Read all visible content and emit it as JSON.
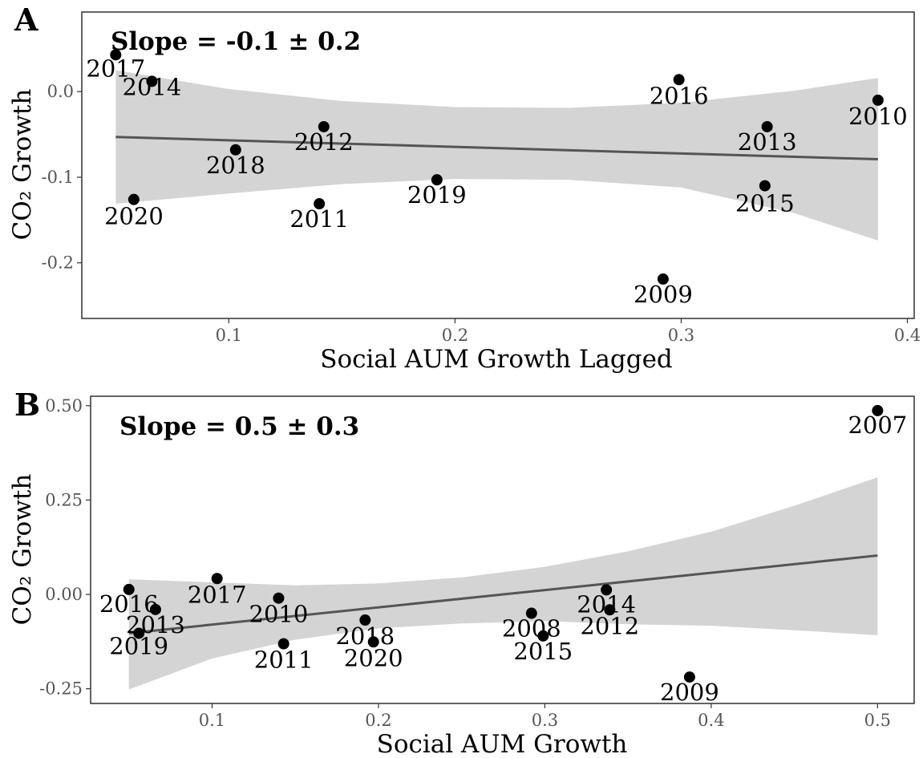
{
  "chart_data": [
    {
      "type": "scatter",
      "panel_label": "A",
      "annotation": "Slope = -0.1 ± 0.2",
      "xlabel": "Social AUM Growth Lagged",
      "ylabel": "CO₂ Growth",
      "xlim": [
        0.035,
        0.403
      ],
      "ylim": [
        -0.265,
        0.093
      ],
      "xticks": [
        0.1,
        0.2,
        0.3,
        0.4
      ],
      "xtick_labels": [
        "0.1",
        "0.2",
        "0.3",
        "0.4"
      ],
      "yticks": [
        -0.2,
        -0.1,
        0.0
      ],
      "ytick_labels": [
        "-0.2",
        "-0.1",
        "0.0"
      ],
      "points": [
        {
          "label": "2017",
          "x": 0.05,
          "y": 0.043
        },
        {
          "label": "2014",
          "x": 0.066,
          "y": 0.012
        },
        {
          "label": "2020",
          "x": 0.058,
          "y": -0.126
        },
        {
          "label": "2018",
          "x": 0.103,
          "y": -0.068
        },
        {
          "label": "2012",
          "x": 0.142,
          "y": -0.041
        },
        {
          "label": "2011",
          "x": 0.14,
          "y": -0.131
        },
        {
          "label": "2019",
          "x": 0.192,
          "y": -0.103
        },
        {
          "label": "2009",
          "x": 0.292,
          "y": -0.219
        },
        {
          "label": "2016",
          "x": 0.299,
          "y": 0.014
        },
        {
          "label": "2013",
          "x": 0.338,
          "y": -0.041
        },
        {
          "label": "2015",
          "x": 0.337,
          "y": -0.11
        },
        {
          "label": "2010",
          "x": 0.387,
          "y": -0.01
        }
      ],
      "fit": {
        "x": [
          0.05,
          0.387
        ],
        "y": [
          -0.053,
          -0.079
        ]
      },
      "band": {
        "x": [
          0.05,
          0.1,
          0.15,
          0.2,
          0.25,
          0.3,
          0.35,
          0.387
        ],
        "upper": [
          0.025,
          0.003,
          -0.011,
          -0.018,
          -0.019,
          -0.013,
          0.001,
          0.016
        ],
        "lower": [
          -0.131,
          -0.119,
          -0.108,
          -0.102,
          -0.103,
          -0.112,
          -0.142,
          -0.174
        ]
      },
      "grid": false
    },
    {
      "type": "scatter",
      "panel_label": "B",
      "annotation": "Slope = 0.5 ± 0.3",
      "xlabel": "Social AUM Growth",
      "ylabel": "CO₂ Growth",
      "xlim": [
        0.027,
        0.522
      ],
      "ylim": [
        -0.289,
        0.525
      ],
      "xticks": [
        0.1,
        0.2,
        0.3,
        0.4,
        0.5
      ],
      "xtick_labels": [
        "0.1",
        "0.2",
        "0.3",
        "0.4",
        "0.5"
      ],
      "yticks": [
        -0.25,
        0.0,
        0.25,
        0.5
      ],
      "ytick_labels": [
        "-0.25",
        "0.00",
        "0.25",
        "0.50"
      ],
      "points": [
        {
          "label": "2007",
          "x": 0.5,
          "y": 0.487
        },
        {
          "label": "2016",
          "x": 0.05,
          "y": 0.013
        },
        {
          "label": "2013",
          "x": 0.066,
          "y": -0.04
        },
        {
          "label": "2019",
          "x": 0.056,
          "y": -0.103
        },
        {
          "label": "2017",
          "x": 0.103,
          "y": 0.042
        },
        {
          "label": "2010",
          "x": 0.14,
          "y": -0.01
        },
        {
          "label": "2011",
          "x": 0.143,
          "y": -0.131
        },
        {
          "label": "2018",
          "x": 0.192,
          "y": -0.068
        },
        {
          "label": "2020",
          "x": 0.197,
          "y": -0.126
        },
        {
          "label": "2008",
          "x": 0.292,
          "y": -0.05
        },
        {
          "label": "2015",
          "x": 0.299,
          "y": -0.11
        },
        {
          "label": "2014",
          "x": 0.337,
          "y": 0.012
        },
        {
          "label": "2012",
          "x": 0.339,
          "y": -0.041
        },
        {
          "label": "2009",
          "x": 0.387,
          "y": -0.219
        }
      ],
      "fit": {
        "x": [
          0.05,
          0.5
        ],
        "y": [
          -0.103,
          0.103
        ]
      },
      "band": {
        "x": [
          0.05,
          0.1,
          0.15,
          0.2,
          0.25,
          0.3,
          0.35,
          0.4,
          0.45,
          0.5
        ],
        "upper": [
          0.04,
          0.032,
          0.024,
          0.029,
          0.045,
          0.073,
          0.114,
          0.166,
          0.235,
          0.31
        ],
        "lower": [
          -0.252,
          -0.17,
          -0.12,
          -0.09,
          -0.077,
          -0.071,
          -0.079,
          -0.083,
          -0.095,
          -0.108
        ]
      },
      "grid": false
    }
  ]
}
